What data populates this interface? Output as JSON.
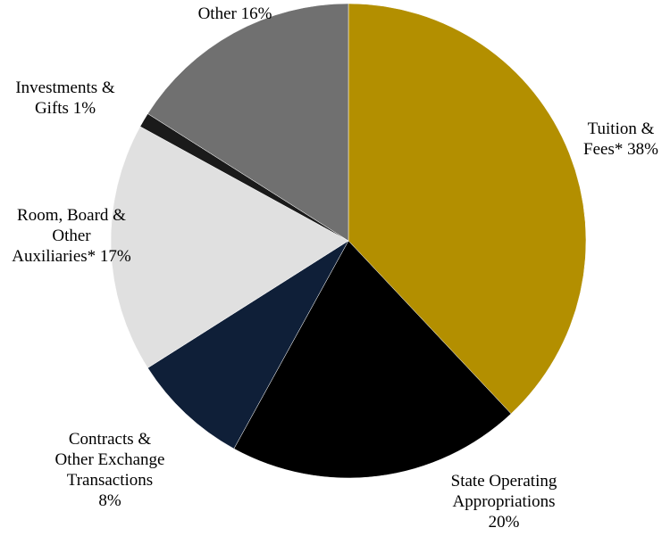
{
  "chart_data": {
    "type": "pie",
    "categories": [
      "Tuition & Fees*",
      "State Operating Appropriations",
      "Contracts & Other Exchange Transactions",
      "Room, Board & Other Auxiliaries*",
      "Investments & Gifts",
      "Other"
    ],
    "values": [
      38,
      20,
      8,
      17,
      1,
      16
    ],
    "value_labels": [
      "38%",
      "20%",
      "8%",
      "17%",
      "1%",
      "16%"
    ],
    "colors": [
      "#b38f00",
      "#000000",
      "#0f1f38",
      "#e0e0e0",
      "#1a1a1a",
      "#707070"
    ]
  }
}
